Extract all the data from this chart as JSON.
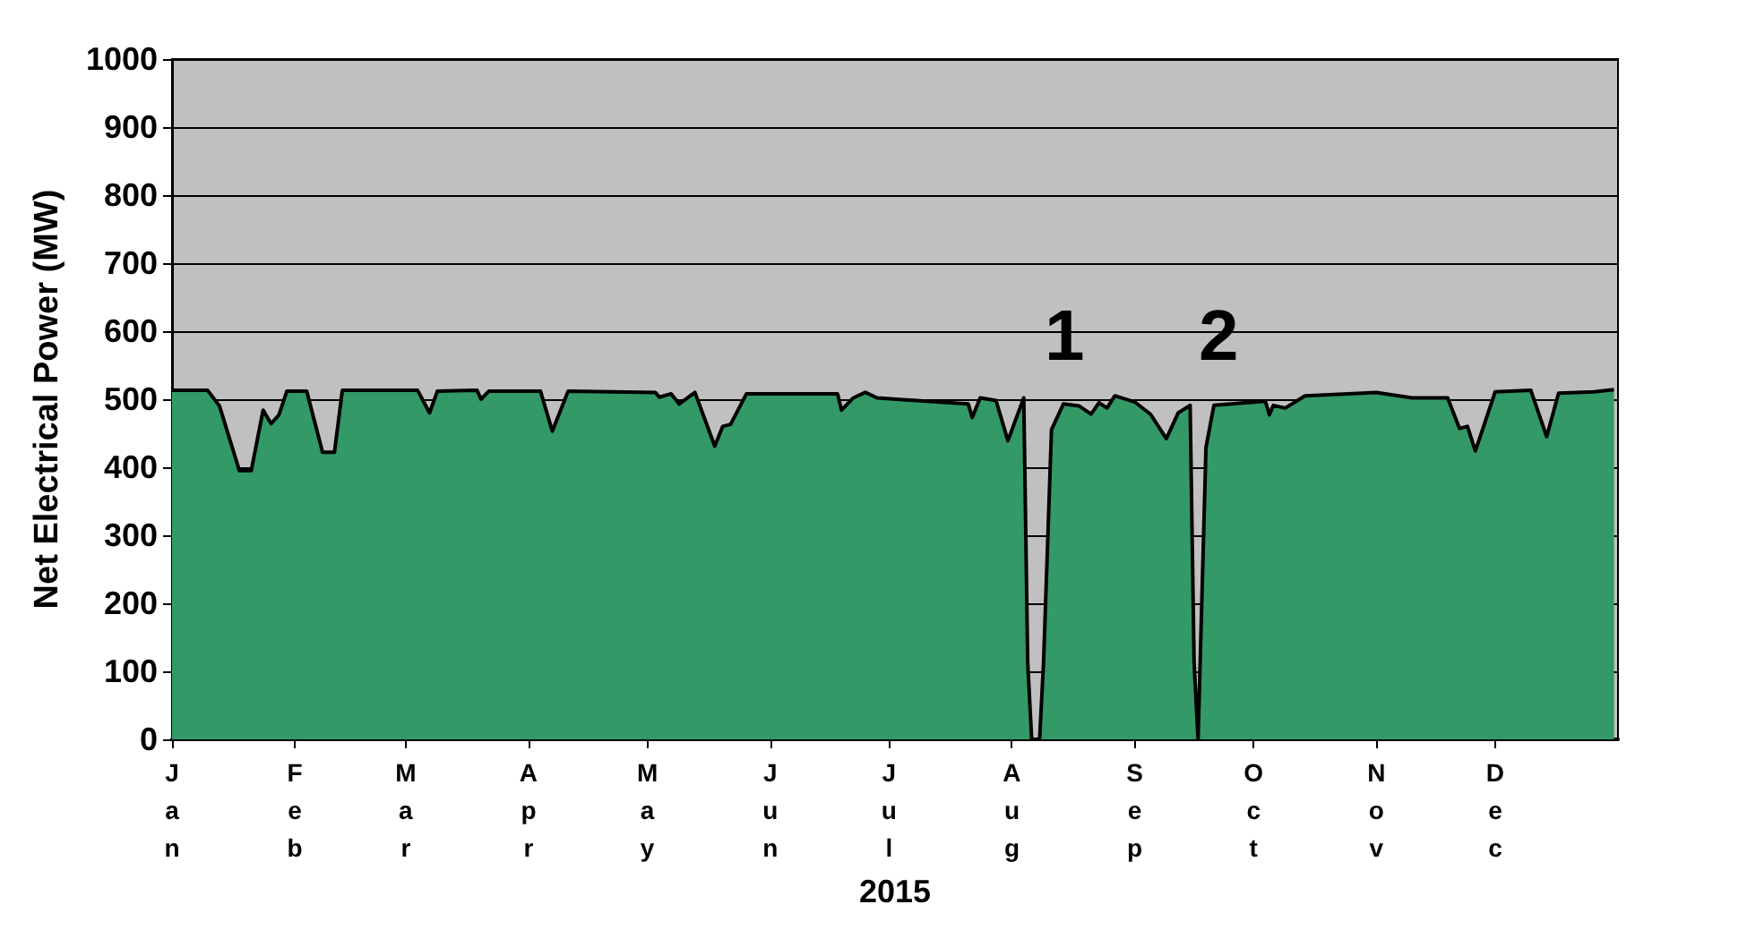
{
  "chart_data": {
    "type": "area",
    "xlabel": "2015",
    "ylabel": "Net Electrical Power (MW)",
    "x": [
      "2015-01-01",
      "2015-01-10",
      "2015-01-13",
      "2015-01-18",
      "2015-01-21",
      "2015-01-24",
      "2015-01-26",
      "2015-01-28",
      "2015-01-30",
      "2015-02-04",
      "2015-02-08",
      "2015-02-11",
      "2015-02-13",
      "2015-03-04",
      "2015-03-07",
      "2015-03-09",
      "2015-03-19",
      "2015-03-20",
      "2015-03-22",
      "2015-04-04",
      "2015-04-07",
      "2015-04-11",
      "2015-05-03",
      "2015-05-04",
      "2015-05-07",
      "2015-05-09",
      "2015-05-13",
      "2015-05-18",
      "2015-05-20",
      "2015-05-22",
      "2015-05-26",
      "2015-06-18",
      "2015-06-19",
      "2015-06-22",
      "2015-06-25",
      "2015-06-28",
      "2015-07-13",
      "2015-07-21",
      "2015-07-22",
      "2015-07-24",
      "2015-07-28",
      "2015-07-31",
      "2015-08-04",
      "2015-08-05",
      "2015-08-06",
      "2015-08-08",
      "2015-08-09",
      "2015-08-11",
      "2015-08-14",
      "2015-08-18",
      "2015-08-21",
      "2015-08-23",
      "2015-08-25",
      "2015-08-27",
      "2015-09-01",
      "2015-09-05",
      "2015-09-09",
      "2015-09-12",
      "2015-09-15",
      "2015-09-16",
      "2015-09-17",
      "2015-09-19",
      "2015-09-21",
      "2015-10-04",
      "2015-10-05",
      "2015-10-06",
      "2015-10-09",
      "2015-10-14",
      "2015-11-01",
      "2015-11-10",
      "2015-11-19",
      "2015-11-22",
      "2015-11-24",
      "2015-11-26",
      "2015-12-01",
      "2015-12-10",
      "2015-12-14",
      "2015-12-17",
      "2015-12-26",
      "2015-12-31"
    ],
    "series": [
      {
        "color": "#339966",
        "values": [
          513,
          513,
          490,
          395,
          395,
          484,
          464,
          477,
          512,
          512,
          422,
          422,
          513,
          513,
          480,
          512,
          513,
          500,
          512,
          512,
          453,
          512,
          510,
          503,
          508,
          493,
          510,
          431,
          460,
          463,
          508,
          508,
          484,
          502,
          510,
          502,
          496,
          493,
          473,
          502,
          498,
          439,
          502,
          113,
          0,
          0,
          113,
          455,
          493,
          490,
          478,
          495,
          487,
          505,
          496,
          478,
          442,
          480,
          491,
          113,
          0,
          429,
          491,
          497,
          477,
          491,
          487,
          505,
          510,
          502,
          502,
          457,
          460,
          424,
          511,
          513,
          445,
          509,
          511,
          514
        ]
      }
    ],
    "xlim": [
      "2015-01-01",
      "2016-01-01"
    ],
    "xticks": [
      {
        "value": "2015-01-01",
        "label": "Jan"
      },
      {
        "value": "2015-02-01",
        "label": "Feb"
      },
      {
        "value": "2015-03-01",
        "label": "Mar"
      },
      {
        "value": "2015-04-01",
        "label": "Apr"
      },
      {
        "value": "2015-05-01",
        "label": "May"
      },
      {
        "value": "2015-06-01",
        "label": "Jun"
      },
      {
        "value": "2015-07-01",
        "label": "Jul"
      },
      {
        "value": "2015-08-01",
        "label": "Aug"
      },
      {
        "value": "2015-09-01",
        "label": "Sep"
      },
      {
        "value": "2015-10-01",
        "label": "Oct"
      },
      {
        "value": "2015-11-01",
        "label": "Nov"
      },
      {
        "value": "2015-12-01",
        "label": "Dec"
      }
    ],
    "ylim": [
      0,
      1000
    ],
    "yticks": [
      0,
      100,
      200,
      300,
      400,
      500,
      600,
      700,
      800,
      900,
      1000
    ],
    "grid": "y",
    "marker": "none",
    "line_style": "solid",
    "annotations": [
      "1",
      "2"
    ]
  }
}
